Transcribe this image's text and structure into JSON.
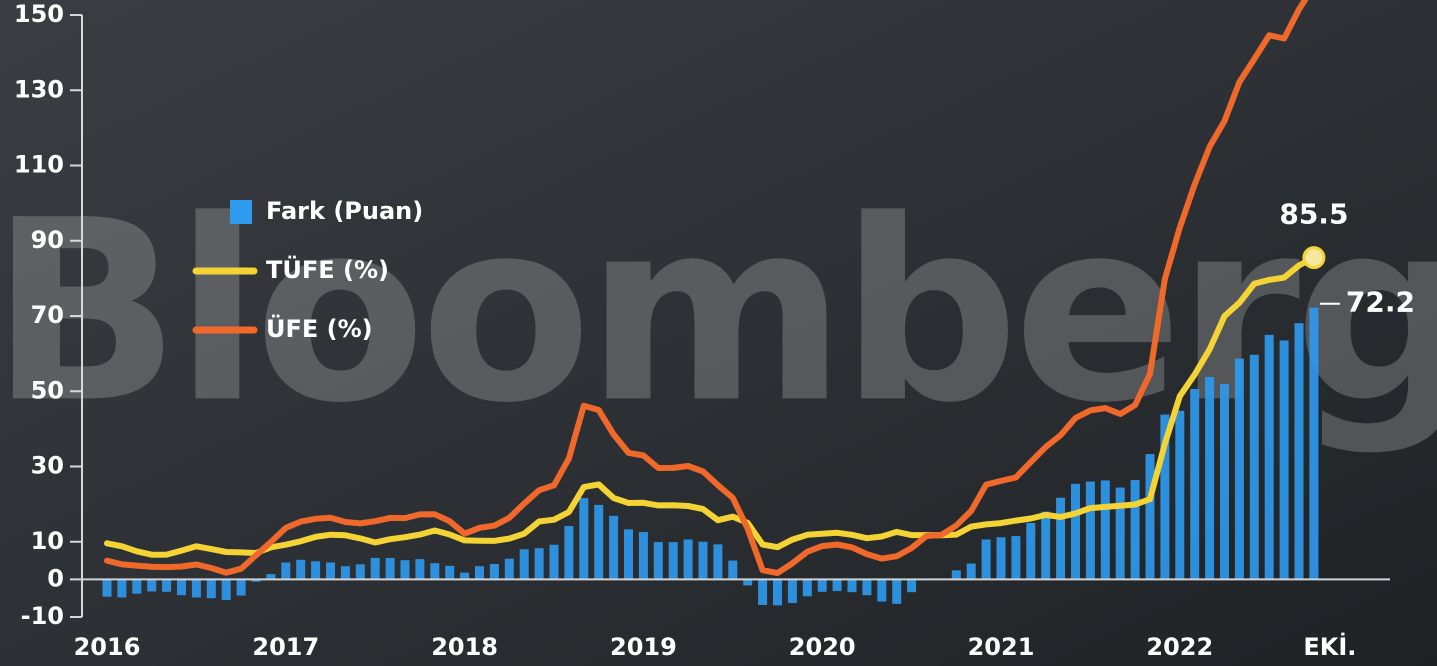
{
  "chart_data": {
    "type": "combo",
    "watermark": "Bloomberg",
    "categories": [
      "2016",
      null,
      null,
      null,
      null,
      null,
      null,
      null,
      null,
      null,
      null,
      null,
      "2017",
      null,
      null,
      null,
      null,
      null,
      null,
      null,
      null,
      null,
      null,
      null,
      "2018",
      null,
      null,
      null,
      null,
      null,
      null,
      null,
      null,
      null,
      null,
      null,
      "2019",
      null,
      null,
      null,
      null,
      null,
      null,
      null,
      null,
      null,
      null,
      null,
      "2020",
      null,
      null,
      null,
      null,
      null,
      null,
      null,
      null,
      null,
      null,
      null,
      "2021",
      null,
      null,
      null,
      null,
      null,
      null,
      null,
      null,
      null,
      null,
      null,
      "2022",
      null,
      null,
      null,
      null,
      null,
      null,
      null,
      null,
      "EKİ."
    ],
    "series": [
      {
        "name": "Fark (Puan)",
        "type": "bar",
        "color": "#2f9bef",
        "last_label": "72.2",
        "values": [
          -4.6,
          -4.8,
          -3.8,
          -3.2,
          -3.3,
          -4.2,
          -4.8,
          -5.0,
          -5.5,
          -4.3,
          -0.6,
          1.4,
          4.5,
          5.2,
          4.8,
          4.5,
          3.5,
          4.0,
          5.7,
          5.7,
          5.1,
          5.4,
          4.3,
          3.6,
          1.8,
          3.5,
          4.1,
          5.5,
          8.0,
          8.3,
          9.2,
          14.2,
          21.6,
          19.8,
          16.9,
          13.3,
          12.6,
          9.9,
          9.9,
          10.6,
          10.0,
          9.3,
          5.0,
          -1.6,
          -6.8,
          -6.9,
          -6.3,
          -4.5,
          -3.3,
          -3.1,
          -3.4,
          -4.2,
          -5.9,
          -6.5,
          -3.4,
          -0.2,
          0.1,
          2.4,
          4.2,
          10.6,
          11.2,
          11.5,
          15.0,
          18.0,
          21.7,
          25.4,
          26.0,
          26.3,
          24.4,
          26.4,
          33.3,
          43.8,
          44.8,
          50.6,
          53.8,
          51.9,
          58.7,
          59.7,
          65.0,
          63.5,
          68.1,
          72.2
        ]
      },
      {
        "name": "TÜFE (%)",
        "type": "line",
        "color": "#f4d435",
        "last_label": "85.5",
        "values": [
          9.58,
          8.78,
          7.46,
          6.57,
          6.58,
          7.64,
          8.79,
          8.05,
          7.28,
          7.16,
          7.0,
          8.53,
          9.22,
          10.13,
          11.29,
          11.87,
          11.72,
          10.9,
          9.79,
          10.68,
          11.2,
          11.9,
          12.98,
          11.92,
          10.35,
          10.26,
          10.23,
          10.85,
          12.15,
          15.39,
          15.85,
          17.9,
          24.52,
          25.24,
          21.62,
          20.3,
          20.35,
          19.67,
          19.71,
          19.5,
          18.71,
          15.72,
          16.65,
          15.01,
          9.26,
          8.55,
          10.56,
          11.84,
          12.15,
          12.37,
          11.86,
          10.94,
          11.39,
          12.62,
          11.76,
          11.77,
          11.75,
          11.89,
          14.03,
          14.6,
          14.97,
          15.61,
          16.19,
          17.14,
          16.59,
          17.53,
          18.95,
          19.25,
          19.58,
          19.89,
          21.31,
          36.08,
          48.69,
          54.44,
          61.14,
          69.97,
          73.5,
          78.62,
          79.6,
          80.21,
          83.45,
          85.51
        ]
      },
      {
        "name": "ÜFE (%)",
        "type": "line",
        "color": "#f0692b",
        "values": [
          4.97,
          3.98,
          3.67,
          3.34,
          3.25,
          3.41,
          3.96,
          3.03,
          1.78,
          2.84,
          6.41,
          9.94,
          13.69,
          15.36,
          16.09,
          16.37,
          15.26,
          14.87,
          15.45,
          16.34,
          16.28,
          17.28,
          17.3,
          15.47,
          12.14,
          13.71,
          14.28,
          16.37,
          20.16,
          23.71,
          25.0,
          32.13,
          46.15,
          45.01,
          38.54,
          33.64,
          32.93,
          29.59,
          29.64,
          30.12,
          28.71,
          25.04,
          21.66,
          13.45,
          2.45,
          1.7,
          4.26,
          7.36,
          8.84,
          9.26,
          8.5,
          6.71,
          5.53,
          6.17,
          8.33,
          11.53,
          11.81,
          14.33,
          18.2,
          25.15,
          26.16,
          27.09,
          31.2,
          35.17,
          38.33,
          42.89,
          44.92,
          45.52,
          43.96,
          46.31,
          54.62,
          79.89,
          93.53,
          105.01,
          114.97,
          121.82,
          132.16,
          138.31,
          144.61,
          143.75,
          151.5,
          157.69
        ]
      }
    ],
    "ylim": [
      -10,
      150
    ],
    "yticks": [
      -10,
      0,
      10,
      30,
      50,
      70,
      90,
      110,
      130,
      150
    ],
    "zero_line": true,
    "legend": "upper left"
  }
}
